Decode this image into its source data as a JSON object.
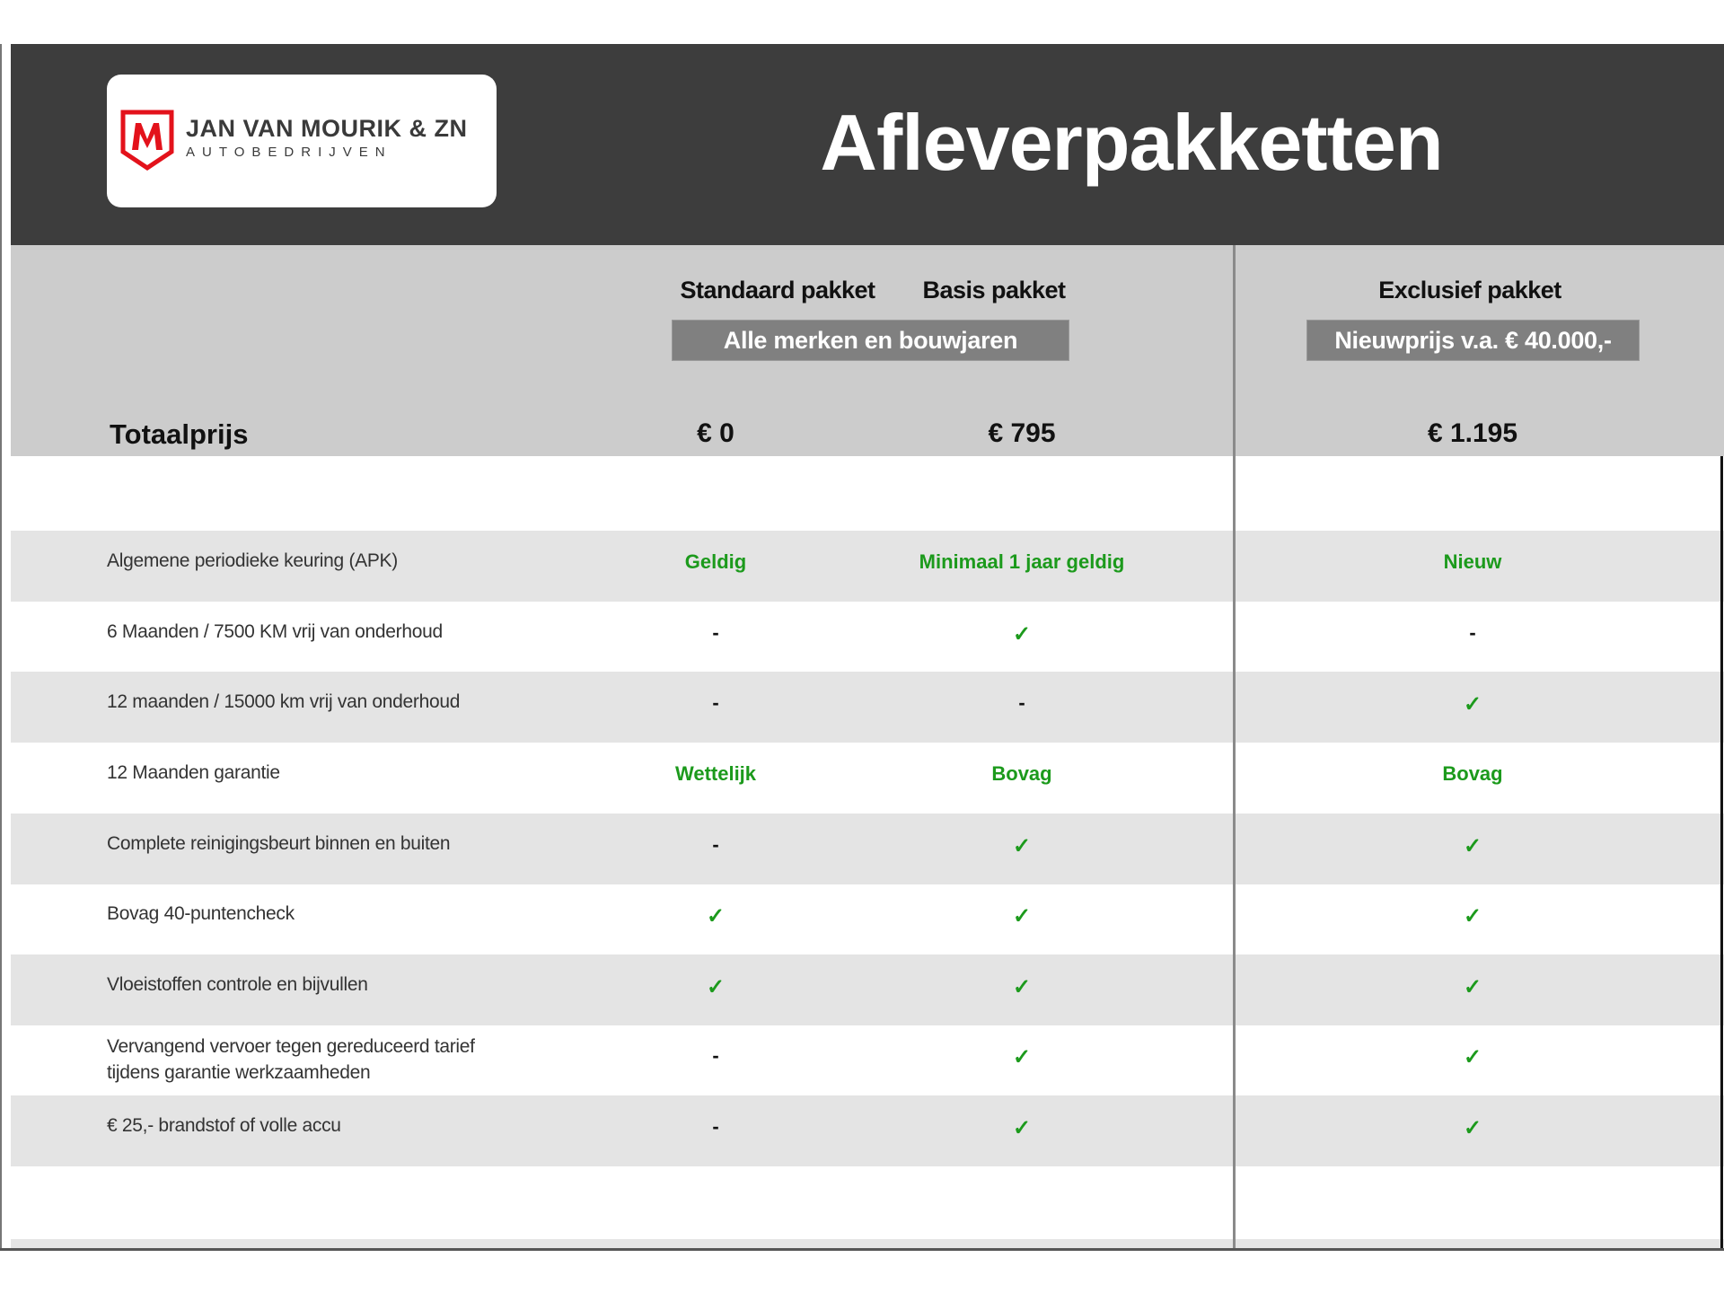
{
  "brand": {
    "name": "JAN VAN MOURIK & ZN",
    "subtitle": "AUTOBEDRIJVEN",
    "logo_mark": "M",
    "accent": "#e3121b"
  },
  "title": "Afleverpakketten",
  "columns": [
    {
      "name": "Standaard pakket",
      "price": "€ 0"
    },
    {
      "name": "Basis pakket",
      "price": "€ 795"
    },
    {
      "name": "Exclusief pakket",
      "price": "€ 1.195"
    }
  ],
  "banners": {
    "standard_basis": "Alle merken en bouwjaren",
    "exclusief": "Nieuwprijs v.a. € 40.000,-"
  },
  "total_label": "Totaalprijs",
  "colors": {
    "header": "#3d3d3d",
    "green": "#1c9a1c",
    "row_grey": "#e4e4e4",
    "head_grey": "#cccccc"
  },
  "rows": [
    {
      "label": "Algemene periodieke keuring (APK)",
      "values": [
        "Geldig",
        "Minimaal 1 jaar geldig",
        "Nieuw"
      ]
    },
    {
      "label": "6 Maanden / 7500 KM vrij van onderhoud",
      "values": [
        "-",
        "✓",
        "-"
      ]
    },
    {
      "label": "12 maanden / 15000 km vrij van onderhoud",
      "values": [
        "-",
        "-",
        "✓"
      ]
    },
    {
      "label": "12 Maanden  garantie",
      "values": [
        "Wettelijk",
        "Bovag",
        "Bovag"
      ]
    },
    {
      "label": "Complete reinigingsbeurt binnen en buiten",
      "values": [
        "-",
        "✓",
        "✓"
      ]
    },
    {
      "label": "Bovag 40-puntencheck",
      "values": [
        "✓",
        "✓",
        "✓"
      ]
    },
    {
      "label": "Vloeistoffen controle en bijvullen",
      "values": [
        "✓",
        "✓",
        "✓"
      ]
    },
    {
      "label_lines": [
        "Vervangend vervoer tegen gereduceerd tarief",
        "tijdens garantie werkzaamheden"
      ],
      "values": [
        "-",
        "✓",
        "✓"
      ]
    },
    {
      "label": "€ 25,- brandstof of  volle accu",
      "values": [
        "-",
        "✓",
        "✓"
      ]
    }
  ]
}
